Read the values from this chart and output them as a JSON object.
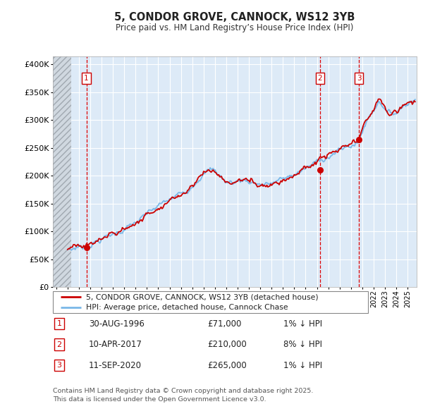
{
  "title": "5, CONDOR GROVE, CANNOCK, WS12 3YB",
  "subtitle": "Price paid vs. HM Land Registry’s House Price Index (HPI)",
  "ytick_values": [
    0,
    50000,
    100000,
    150000,
    200000,
    250000,
    300000,
    350000,
    400000
  ],
  "ytick_labels": [
    "£0",
    "£50K",
    "£100K",
    "£150K",
    "£200K",
    "£250K",
    "£300K",
    "£350K",
    "£400K"
  ],
  "ylim": [
    0,
    415000
  ],
  "xlim_start": 1993.7,
  "xlim_end": 2025.8,
  "legend_line1": "5, CONDOR GROVE, CANNOCK, WS12 3YB (detached house)",
  "legend_line2": "HPI: Average price, detached house, Cannock Chase",
  "sale_dates": [
    1996.66,
    2017.27,
    2020.7
  ],
  "sale_prices": [
    71000,
    210000,
    265000
  ],
  "sale_labels": [
    "1",
    "2",
    "3"
  ],
  "annotation_rows": [
    [
      "1",
      "30-AUG-1996",
      "£71,000",
      "1% ↓ HPI"
    ],
    [
      "2",
      "10-APR-2017",
      "£210,000",
      "8% ↓ HPI"
    ],
    [
      "3",
      "11-SEP-2020",
      "£265,000",
      "1% ↓ HPI"
    ]
  ],
  "footer": "Contains HM Land Registry data © Crown copyright and database right 2025.\nThis data is licensed under the Open Government Licence v3.0.",
  "hpi_line_color": "#7ab8e8",
  "price_line_color": "#cc0000",
  "sale_marker_color": "#cc0000",
  "background_color": "#ddeaf7",
  "grid_color": "#ffffff",
  "vline_color": "#dd0000",
  "box_edge_color": "#cc0000"
}
